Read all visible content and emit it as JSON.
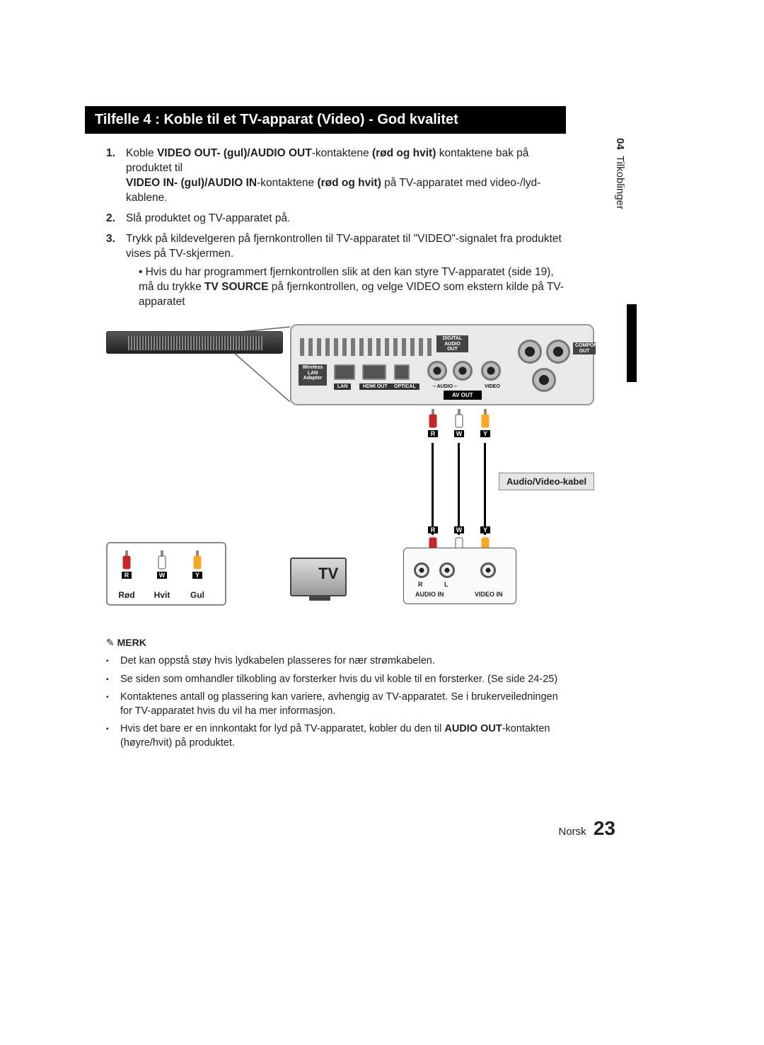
{
  "title": "Tilfelle 4 : Koble til et TV-apparat (Video) - God kvalitet",
  "side_tab": {
    "chapter": "04",
    "name": "Tilkoblinger"
  },
  "steps": [
    {
      "n": "1.",
      "pre": "Koble ",
      "b1": "VIDEO OUT- (gul)/AUDIO OUT",
      "mid1": "-kontaktene ",
      "b2": "(rød og hvit)",
      "mid2": " kontaktene bak på produktet til ",
      "b3": "VIDEO IN- (gul)/AUDIO IN",
      "mid3": "-kontaktene ",
      "b4": "(rød og hvit)",
      "post": " på TV-apparatet med video-/lyd-kablene."
    },
    {
      "n": "2.",
      "text": "Slå produktet og TV-apparatet på."
    },
    {
      "n": "3.",
      "text": "Trykk på kildevelgeren på fjernkontrollen til TV-apparatet til \"VIDEO\"-signalet fra produktet vises på TV-skjermen.",
      "sub_pre": "Hvis du har programmert fjernkontrollen slik at den kan styre TV-apparatet (side 19), må du trykke ",
      "sub_b": "TV SOURCE",
      "sub_post": " på fjernkontrollen, og velge VIDEO som ekstern kilde på TV-apparatet"
    }
  ],
  "diagram": {
    "panel_labels": {
      "digital_audio": "DIGITAL\nAUDIO OUT",
      "wireless": "Wireless\nLAN\nAdapter",
      "lan": "LAN",
      "hdmi": "HDMI OUT",
      "optical": "OPTICAL",
      "component": "COMPONENT\nOUT",
      "audio_lr": "– AUDIO –",
      "video": "VIDEO",
      "avout": "AV OUT"
    },
    "plugs_top": [
      {
        "letter": "R",
        "color": "#c62828"
      },
      {
        "letter": "W",
        "color": "#ffffff"
      },
      {
        "letter": "Y",
        "color": "#f9a825"
      }
    ],
    "plugs_bottom": [
      {
        "letter": "R",
        "color": "#c62828"
      },
      {
        "letter": "W",
        "color": "#ffffff"
      },
      {
        "letter": "Y",
        "color": "#f9a825"
      }
    ],
    "cable_tag": "Audio/Video-kabel",
    "tv_label": "TV",
    "tv_panel": {
      "audio_in": "AUDIO IN",
      "video_in": "VIDEO IN",
      "r": "R",
      "l": "L"
    },
    "legend": [
      {
        "letter": "R",
        "name": "Rød",
        "color": "#c62828"
      },
      {
        "letter": "W",
        "name": "Hvit",
        "color": "#ffffff"
      },
      {
        "letter": "Y",
        "name": "Gul",
        "color": "#f9a825"
      }
    ]
  },
  "merk": {
    "heading": "MERK",
    "items": [
      "Det kan oppstå støy hvis lydkabelen plasseres for nær strømkabelen.",
      "Se siden som omhandler tilkobling av forsterker hvis du vil koble til en forsterker. (Se side 24-25)",
      "Kontaktenes antall og plassering kan variere, avhengig av TV-apparatet. Se i brukerveiledningen for TV-apparatet hvis du vil ha mer informasjon.",
      {
        "pre": "Hvis det bare er en innkontakt for lyd på TV-apparatet, kobler du den til ",
        "b": "AUDIO OUT",
        "post": "-kontakten (høyre/hvit) på produktet."
      }
    ]
  },
  "footer": {
    "lang": "Norsk",
    "page": "23"
  },
  "colors": {
    "title_bg": "#000000",
    "panel_bg": "#e9e9e9",
    "panel_border": "#999999"
  }
}
